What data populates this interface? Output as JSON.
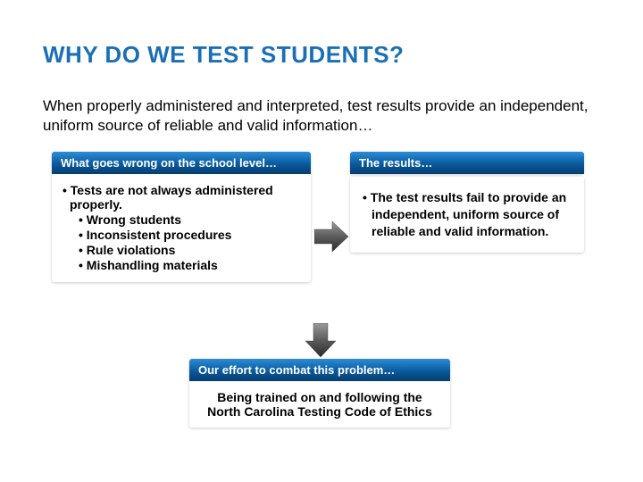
{
  "title": "WHY DO WE TEST STUDENTS?",
  "intro": "When properly administered and interpreted, test results provide an independent, uniform source of reliable and valid information…",
  "left": {
    "header": "What goes wrong on the school level…",
    "items": [
      {
        "level": 1,
        "text": "Tests are not always administered properly."
      },
      {
        "level": 2,
        "text": "Wrong students"
      },
      {
        "level": 2,
        "text": "Inconsistent procedures"
      },
      {
        "level": 2,
        "text": "Rule violations"
      },
      {
        "level": 2,
        "text": "Mishandling materials"
      }
    ]
  },
  "right": {
    "header": "The results…",
    "items": [
      {
        "text": "The test results fail to provide an independent, uniform source of reliable and valid information."
      }
    ]
  },
  "bottom": {
    "header": "Our effort to combat this problem…",
    "body": "Being trained on and following the North Carolina Testing Code of Ethics"
  },
  "colors": {
    "title": "#1a6fb5",
    "header_grad_top": "#2b8dd6",
    "header_grad_bottom": "#063d6e",
    "arrow_light": "#8a8a8a",
    "arrow_dark": "#2f2f2f"
  }
}
